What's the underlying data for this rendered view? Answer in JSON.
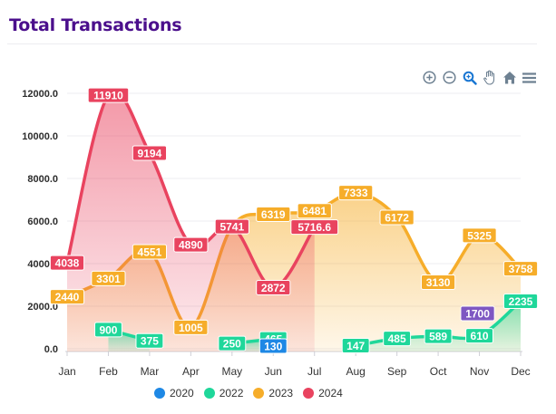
{
  "card": {
    "title": "Total Transactions"
  },
  "toolbar": {
    "zoom_in": "zoom-in-icon",
    "zoom_out": "zoom-out-icon",
    "selection_zoom": "magnifier-icon",
    "pan": "hand-icon",
    "reset": "home-icon",
    "menu": "menu-icon"
  },
  "chart_data": {
    "type": "area",
    "title": "",
    "xlabel": "",
    "ylabel": "",
    "categories": [
      "Jan",
      "Feb",
      "Mar",
      "Apr",
      "May",
      "Jun",
      "Jul",
      "Aug",
      "Sep",
      "Oct",
      "Nov",
      "Dec"
    ],
    "ylim": [
      0,
      13000
    ],
    "yticks": [
      0,
      2000,
      4000,
      6000,
      8000,
      10000,
      12000
    ],
    "ytick_labels": [
      "0.0",
      "2000.0",
      "4000.0",
      "6000.0",
      "8000.0",
      "10000.0",
      "12000.0"
    ],
    "grid": true,
    "legend_position": "bottom",
    "series": [
      {
        "name": "2020",
        "color": "#1e88e5",
        "values": [
          null,
          null,
          null,
          null,
          null,
          130,
          null,
          null,
          null,
          null,
          null,
          null
        ],
        "labels": [
          null,
          null,
          null,
          null,
          null,
          "130",
          null,
          null,
          null,
          null,
          null,
          null
        ]
      },
      {
        "name": "2022",
        "color": "#1fd79a",
        "values": [
          null,
          900,
          375,
          null,
          250,
          465,
          null,
          147,
          485,
          589,
          610,
          2235
        ],
        "labels": [
          null,
          "900",
          "375",
          null,
          "250",
          "465",
          null,
          "147",
          "485",
          "589",
          "610",
          "2235"
        ]
      },
      {
        "name": "2023",
        "color": "#f6ad2a",
        "values": [
          2440,
          3301,
          4551,
          1005,
          5741,
          6319,
          6481,
          7333,
          6172,
          3130,
          5325,
          3758
        ],
        "labels": [
          "2440",
          "3301",
          "4551",
          "1005",
          null,
          "6319",
          "6481",
          "7333",
          "6172",
          "3130",
          "5325",
          "3758"
        ]
      },
      {
        "name": "2024",
        "color": "#e9435f",
        "values": [
          4038,
          11910,
          9194,
          4890,
          5741,
          2872,
          5716.6,
          null,
          null,
          null,
          null,
          null
        ],
        "labels": [
          "4038",
          "11910",
          "9194",
          "4890",
          "5741",
          "2872",
          "5716.6",
          null,
          null,
          null,
          null,
          null
        ]
      }
    ],
    "annotations": [
      {
        "text": "1700",
        "x": "Nov",
        "y": 1700,
        "color": "#7e57c2"
      }
    ]
  }
}
